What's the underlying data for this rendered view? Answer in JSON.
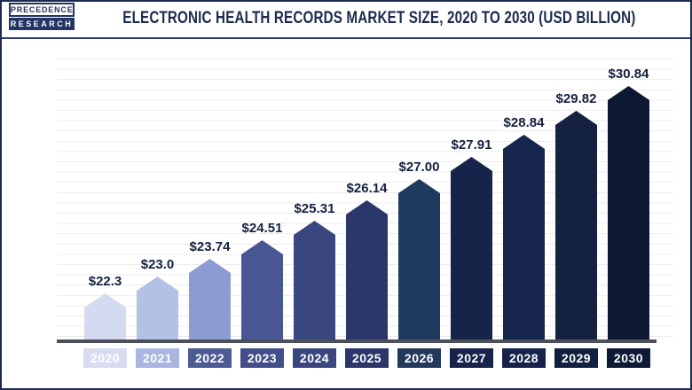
{
  "header": {
    "logo": {
      "line1": "PRECEDENCE",
      "line2": "RESEARCH"
    },
    "title": "ELECTRONIC HEALTH RECORDS MARKET SIZE, 2020 TO 2030 (USD BILLION)"
  },
  "chart_data": {
    "type": "bar",
    "title": "Electronic Health Records Market Size, 2020 to 2030 (USD Billion)",
    "xlabel": "",
    "ylabel": "",
    "units": "USD Billion",
    "categories": [
      "2020",
      "2021",
      "2022",
      "2023",
      "2024",
      "2025",
      "2026",
      "2027",
      "2028",
      "2029",
      "2030"
    ],
    "values": [
      22.3,
      23.0,
      23.74,
      24.51,
      25.31,
      26.14,
      27.0,
      27.91,
      28.84,
      29.82,
      30.84
    ],
    "value_labels": [
      "$22.3",
      "$23.0",
      "$23.74",
      "$24.51",
      "$25.31",
      "$26.14",
      "$27.00",
      "$27.91",
      "$28.84",
      "$29.82",
      "$30.84"
    ],
    "bar_colors": [
      "#d4daef",
      "#b4c1e6",
      "#8c9cd2",
      "#485694",
      "#3a477f",
      "#2b366b",
      "#1f3a5f",
      "#16244a",
      "#16264d",
      "#142141",
      "#0d1933"
    ],
    "year_label_colors": [
      "#d7dcf1",
      "#a8b6e0",
      "#4d5b94",
      "#414e8a",
      "#3a477f",
      "#2b366b",
      "#23395c",
      "#16234a",
      "#15234a",
      "#12203f",
      "#0e1a35"
    ],
    "bar_shape": "pentagon-arrow-top",
    "grid": "horizontal",
    "legend": "none",
    "ylim": [
      20.35,
      31.5
    ]
  },
  "colors": {
    "title_text": "#1b2a4e",
    "value_text": "#14213f",
    "axis_line": "#4b505c",
    "gridline": "#ececf1",
    "frame_border": "#1e2a52",
    "header_rule": "#343a80",
    "year_text": "#ffffff",
    "logo_navy": "#243463"
  }
}
